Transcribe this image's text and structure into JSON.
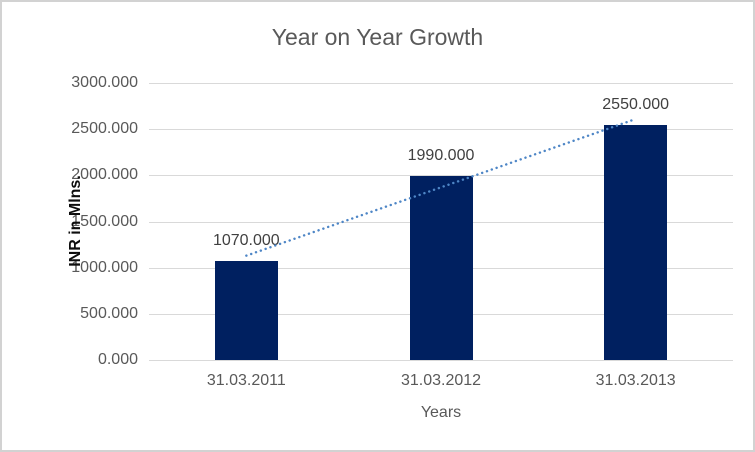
{
  "chart_data": {
    "type": "bar",
    "title": "Year on Year Growth",
    "categories": [
      "31.03.2011",
      "31.03.2012",
      "31.03.2013"
    ],
    "values": [
      1070,
      1990,
      2550
    ],
    "data_labels": [
      "1070.000",
      "1990.000",
      "2550.000"
    ],
    "xlabel": "Years",
    "ylabel": "INR in Mlns.",
    "ylim": [
      0,
      3000
    ],
    "ytick_interval": 500,
    "ytick_labels_top_to_bottom": [
      "3000.000",
      "2500.000",
      "2000.000",
      "1500.000",
      "1000.000",
      "500.000",
      "0.000"
    ],
    "grid": true,
    "legend": "none",
    "trendline": {
      "type": "linear",
      "style": "dotted"
    },
    "colors": {
      "bar": "#002060",
      "trendline": "#4e86c6",
      "gridline": "#d9d9d9",
      "title_text": "#595959",
      "axis_text": "#595959",
      "data_label_text": "#404040",
      "frame_border": "#d2d2d2",
      "background": "#ffffff"
    }
  }
}
